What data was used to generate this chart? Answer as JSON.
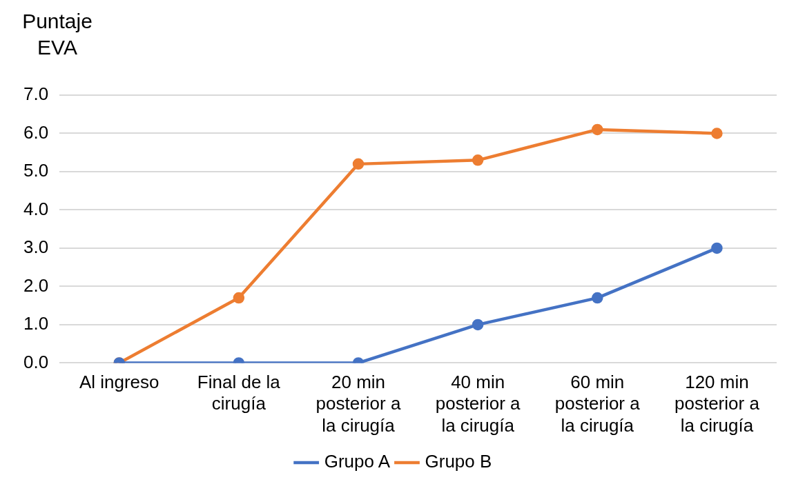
{
  "chart_data": {
    "type": "line",
    "ylabel": "Puntaje EVA",
    "categories": [
      "Al ingreso",
      "Final de la cirugía",
      "20 min posterior a la cirugía",
      "40 min posterior a la cirugía",
      "60 min posterior a la cirugía",
      "120 min posterior a la cirugía"
    ],
    "series": [
      {
        "name": "Grupo A",
        "color": "#4472c4",
        "values": [
          0,
          0,
          0,
          1.0,
          1.7,
          3.0
        ]
      },
      {
        "name": "Grupo B",
        "color": "#ed7d31",
        "values": [
          0,
          1.7,
          5.2,
          5.3,
          6.1,
          6.0
        ]
      }
    ],
    "ylim": [
      0,
      7
    ],
    "yticks": [
      {
        "value": 0,
        "label": "0.0"
      },
      {
        "value": 1,
        "label": "1.0"
      },
      {
        "value": 2,
        "label": "2.0"
      },
      {
        "value": 3,
        "label": "3.0"
      },
      {
        "value": 4,
        "label": "4.0"
      },
      {
        "value": 5,
        "label": "5.0"
      },
      {
        "value": 6,
        "label": "6.0"
      },
      {
        "value": 7,
        "label": "7.0"
      }
    ],
    "grid": "y",
    "legend": "bottom",
    "marker": "circle",
    "line_style": "solid"
  }
}
